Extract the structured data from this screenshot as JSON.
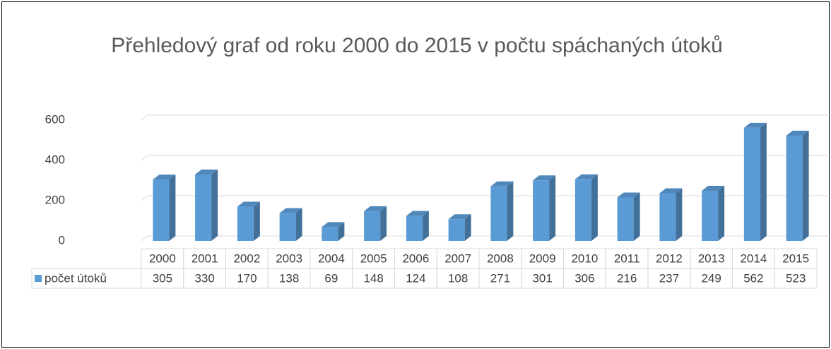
{
  "chart_data": {
    "type": "bar3d",
    "title": "Přehledový graf od roku 2000 do 2015 v počtu spáchaných útoků",
    "categories": [
      "2000",
      "2001",
      "2002",
      "2003",
      "2004",
      "2005",
      "2006",
      "2007",
      "2008",
      "2009",
      "2010",
      "2011",
      "2012",
      "2013",
      "2014",
      "2015"
    ],
    "series": [
      {
        "name": "počet útoků",
        "color": "#5b9bd5",
        "values": [
          305,
          330,
          170,
          138,
          69,
          148,
          124,
          108,
          271,
          301,
          306,
          216,
          237,
          249,
          562,
          523
        ]
      }
    ],
    "ylim": [
      0,
      600
    ],
    "yticks": [
      0,
      200,
      400,
      600
    ],
    "grid": true,
    "data_table": true
  }
}
